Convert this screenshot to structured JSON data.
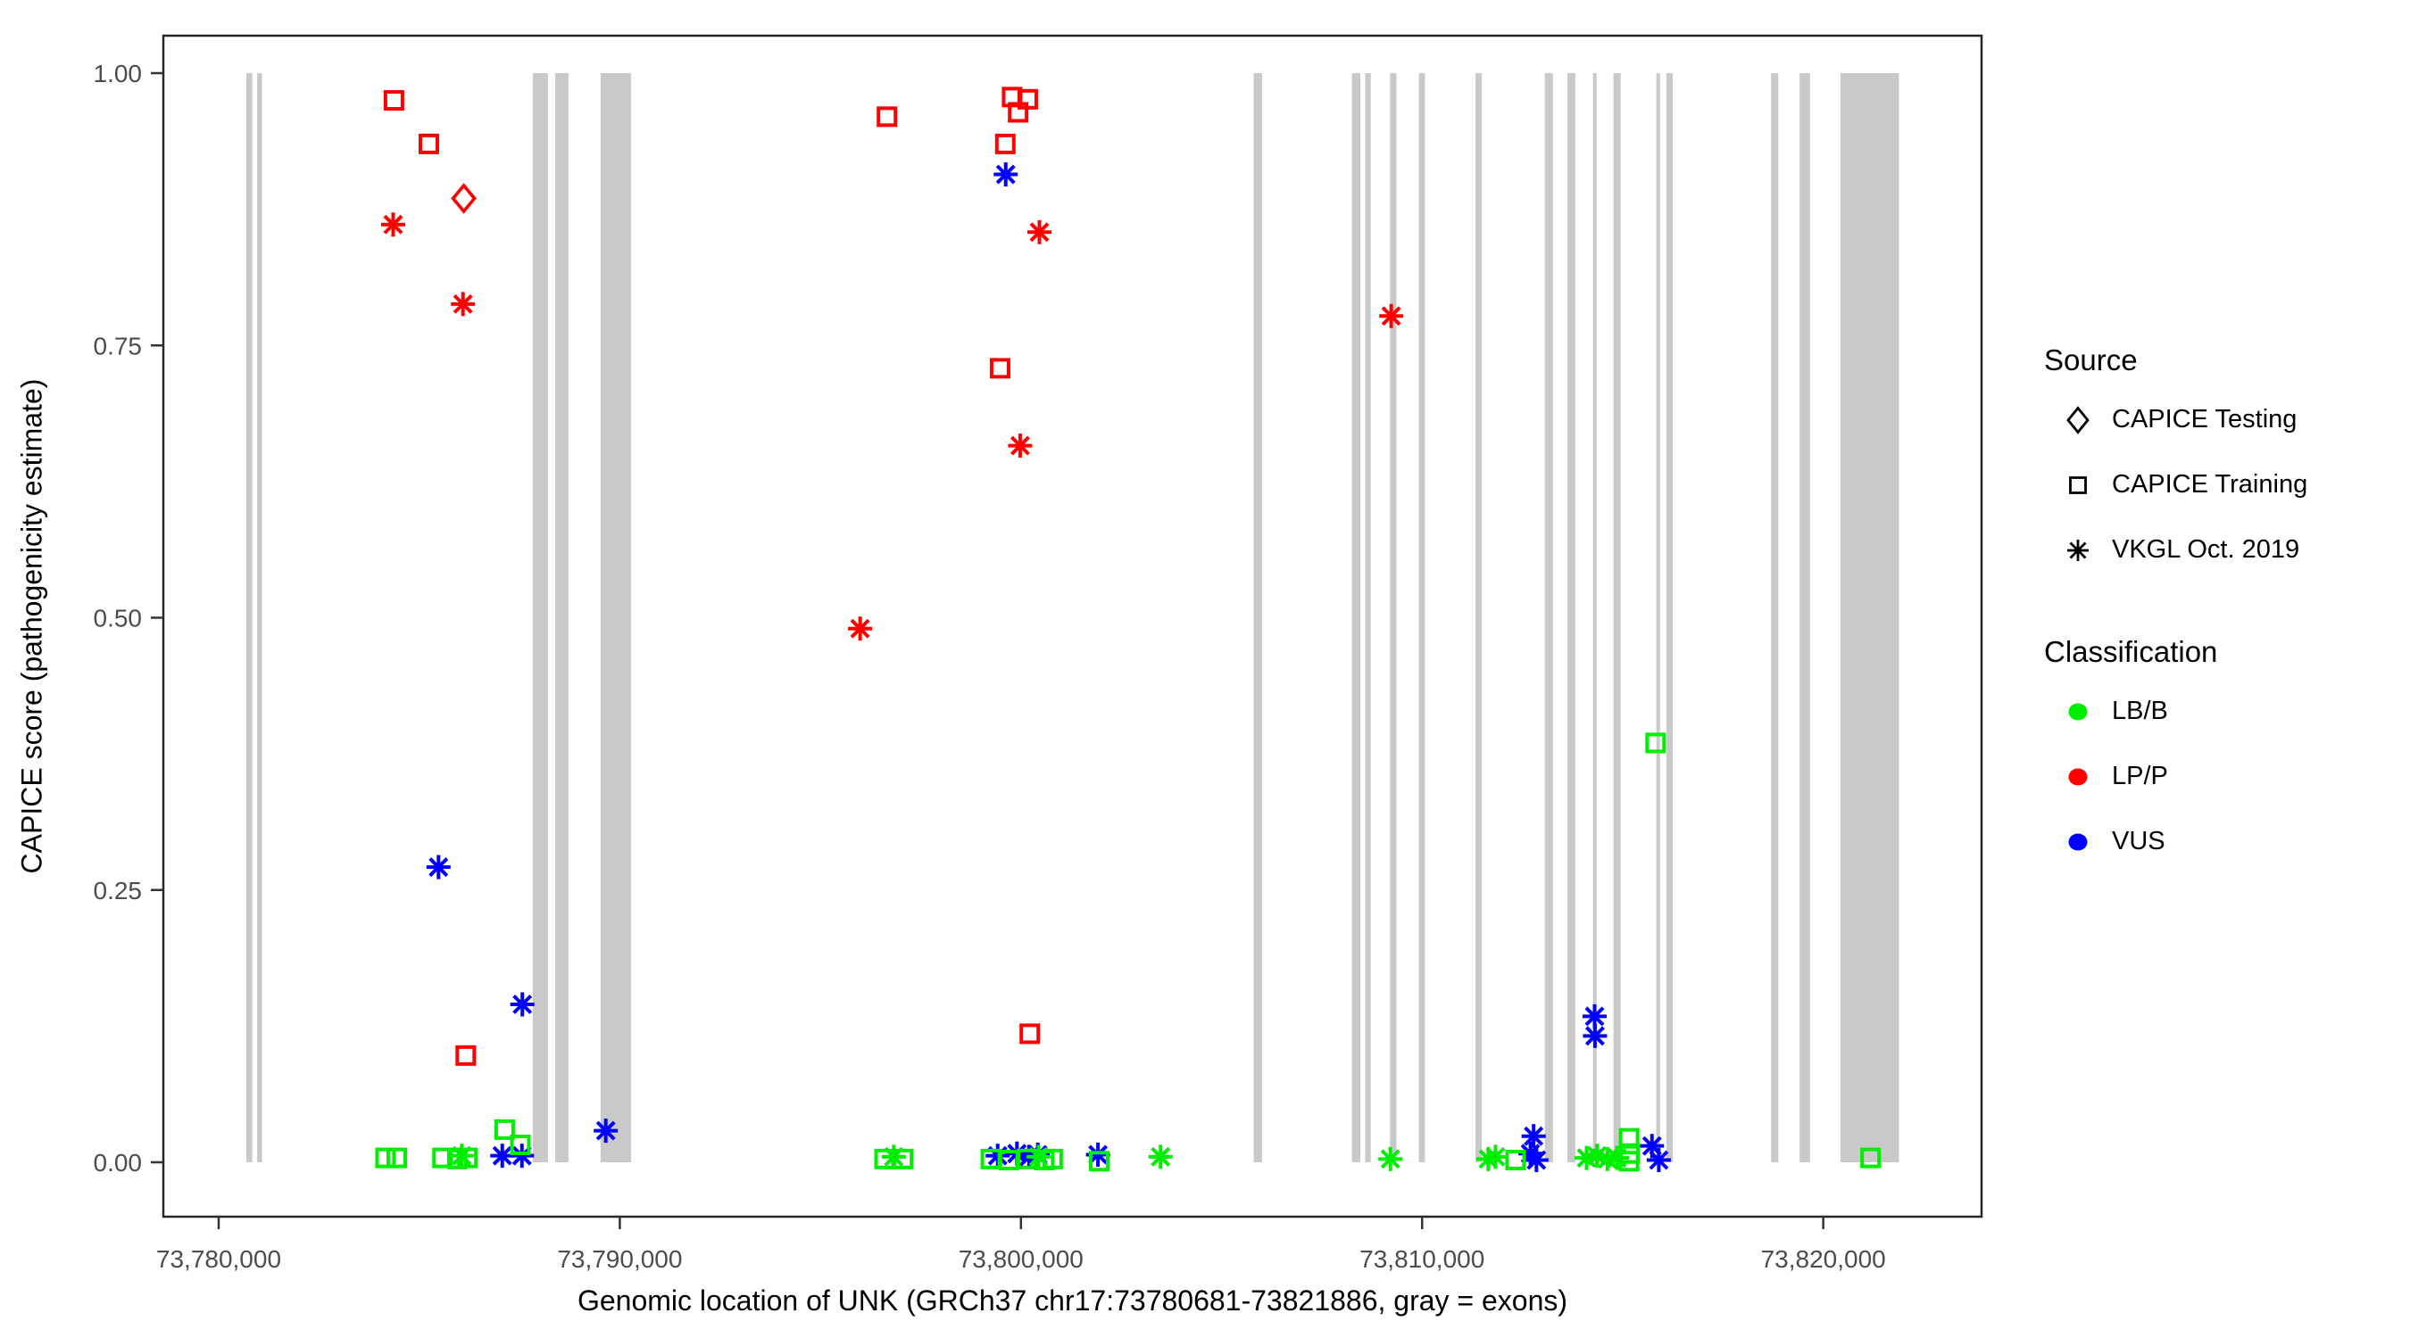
{
  "figure": {
    "x_axis_title": "Genomic location of UNK (GRCh37 chr17:73780681-73821886, gray = exons)",
    "y_axis_title": "CAPICE score (pathogenicity estimate)"
  },
  "legend": {
    "source": {
      "title": "Source",
      "items": [
        {
          "label": "CAPICE Testing",
          "marker": "diamond",
          "color": "#000000"
        },
        {
          "label": "CAPICE Training",
          "marker": "square",
          "color": "#000000"
        },
        {
          "label": "VKGL Oct. 2019",
          "marker": "asterisk",
          "color": "#000000"
        }
      ]
    },
    "classification": {
      "title": "Classification",
      "items": [
        {
          "label": "LB/B",
          "marker": "dot",
          "color": "#00EE00"
        },
        {
          "label": "LP/P",
          "marker": "dot",
          "color": "#FF0000"
        },
        {
          "label": "VUS",
          "marker": "dot",
          "color": "#0000FF"
        }
      ]
    }
  },
  "chart_data": {
    "type": "scatter",
    "title": "",
    "xlabel": "Genomic location of UNK (GRCh37 chr17:73780681-73821886, gray = exons)",
    "ylabel": "CAPICE score (pathogenicity estimate)",
    "x_domain": [
      73778621,
      73823946
    ],
    "y_domain": [
      -0.043,
      1.043
    ],
    "x_ticks": [
      {
        "value": 73780000,
        "label": "73,780,000"
      },
      {
        "value": 73790000,
        "label": "73,790,000"
      },
      {
        "value": 73800000,
        "label": "73,800,000"
      },
      {
        "value": 73810000,
        "label": "73,810,000"
      },
      {
        "value": 73820000,
        "label": "73,820,000"
      }
    ],
    "y_ticks": [
      {
        "value": 0.0,
        "label": "0.00"
      },
      {
        "value": 0.25,
        "label": "0.25"
      },
      {
        "value": 0.5,
        "label": "0.50"
      },
      {
        "value": 0.75,
        "label": "0.75"
      },
      {
        "value": 1.0,
        "label": "1.00"
      }
    ],
    "colors": {
      "LB/B": "#00EE00",
      "LP/P": "#FF0000",
      "VUS": "#0000FF",
      "exon": "#C9C9C9",
      "tick_label": "#4D4D4D",
      "panel_border": "#262626"
    },
    "exons": [
      [
        73780690,
        73780840
      ],
      [
        73780960,
        73781080
      ],
      [
        73787830,
        73788210
      ],
      [
        73788390,
        73788720
      ],
      [
        73789520,
        73790280
      ],
      [
        73805800,
        73806010
      ],
      [
        73808250,
        73808460
      ],
      [
        73808580,
        73808720
      ],
      [
        73809200,
        73809360
      ],
      [
        73809920,
        73810070
      ],
      [
        73811330,
        73811490
      ],
      [
        73813060,
        73813260
      ],
      [
        73813620,
        73813820
      ],
      [
        73814260,
        73814350
      ],
      [
        73814770,
        73814950
      ],
      [
        73815840,
        73815930
      ],
      [
        73816090,
        73816250
      ],
      [
        73818700,
        73818880
      ],
      [
        73819410,
        73819670
      ],
      [
        73820430,
        73821886
      ]
    ],
    "points": [
      {
        "pos": 73784370,
        "score": 0.975,
        "source": "CAPICE Training",
        "classification": "LP/P"
      },
      {
        "pos": 73785240,
        "score": 0.935,
        "source": "CAPICE Training",
        "classification": "LP/P"
      },
      {
        "pos": 73786110,
        "score": 0.885,
        "source": "CAPICE Testing",
        "classification": "LP/P"
      },
      {
        "pos": 73784350,
        "score": 0.861,
        "source": "VKGL Oct. 2019",
        "classification": "LP/P"
      },
      {
        "pos": 73786090,
        "score": 0.788,
        "source": "VKGL Oct. 2019",
        "classification": "LP/P"
      },
      {
        "pos": 73786160,
        "score": 0.098,
        "source": "CAPICE Training",
        "classification": "LP/P"
      },
      {
        "pos": 73796660,
        "score": 0.96,
        "source": "CAPICE Training",
        "classification": "LP/P"
      },
      {
        "pos": 73795990,
        "score": 0.49,
        "source": "VKGL Oct. 2019",
        "classification": "LP/P"
      },
      {
        "pos": 73799780,
        "score": 0.978,
        "source": "CAPICE Training",
        "classification": "LP/P"
      },
      {
        "pos": 73800170,
        "score": 0.976,
        "source": "CAPICE Training",
        "classification": "LP/P"
      },
      {
        "pos": 73799930,
        "score": 0.964,
        "source": "CAPICE Training",
        "classification": "LP/P"
      },
      {
        "pos": 73799610,
        "score": 0.935,
        "source": "CAPICE Training",
        "classification": "LP/P"
      },
      {
        "pos": 73800460,
        "score": 0.854,
        "source": "VKGL Oct. 2019",
        "classification": "LP/P"
      },
      {
        "pos": 73799480,
        "score": 0.729,
        "source": "CAPICE Training",
        "classification": "LP/P"
      },
      {
        "pos": 73799980,
        "score": 0.658,
        "source": "VKGL Oct. 2019",
        "classification": "LP/P"
      },
      {
        "pos": 73800220,
        "score": 0.118,
        "source": "CAPICE Training",
        "classification": "LP/P"
      },
      {
        "pos": 73809230,
        "score": 0.777,
        "source": "VKGL Oct. 2019",
        "classification": "LP/P"
      },
      {
        "pos": 73785480,
        "score": 0.271,
        "source": "VKGL Oct. 2019",
        "classification": "VUS"
      },
      {
        "pos": 73787570,
        "score": 0.145,
        "source": "VKGL Oct. 2019",
        "classification": "VUS"
      },
      {
        "pos": 73789650,
        "score": 0.029,
        "source": "VKGL Oct. 2019",
        "classification": "VUS"
      },
      {
        "pos": 73787070,
        "score": 0.006,
        "source": "VKGL Oct. 2019",
        "classification": "VUS"
      },
      {
        "pos": 73787560,
        "score": 0.006,
        "source": "VKGL Oct. 2019",
        "classification": "VUS"
      },
      {
        "pos": 73799620,
        "score": 0.907,
        "source": "VKGL Oct. 2019",
        "classification": "VUS"
      },
      {
        "pos": 73799420,
        "score": 0.006,
        "source": "VKGL Oct. 2019",
        "classification": "VUS"
      },
      {
        "pos": 73799900,
        "score": 0.008,
        "source": "VKGL Oct. 2019",
        "classification": "VUS"
      },
      {
        "pos": 73800200,
        "score": 0.005,
        "source": "VKGL Oct. 2019",
        "classification": "VUS"
      },
      {
        "pos": 73800420,
        "score": 0.007,
        "source": "VKGL Oct. 2019",
        "classification": "VUS"
      },
      {
        "pos": 73801920,
        "score": 0.007,
        "source": "VKGL Oct. 2019",
        "classification": "VUS"
      },
      {
        "pos": 73812700,
        "score": 0.008,
        "source": "VKGL Oct. 2019",
        "classification": "VUS"
      },
      {
        "pos": 73812780,
        "score": 0.024,
        "source": "VKGL Oct. 2019",
        "classification": "VUS"
      },
      {
        "pos": 73812850,
        "score": 0.002,
        "source": "VKGL Oct. 2019",
        "classification": "VUS"
      },
      {
        "pos": 73814300,
        "score": 0.134,
        "source": "VKGL Oct. 2019",
        "classification": "VUS"
      },
      {
        "pos": 73814310,
        "score": 0.116,
        "source": "VKGL Oct. 2019",
        "classification": "VUS"
      },
      {
        "pos": 73815730,
        "score": 0.015,
        "source": "VKGL Oct. 2019",
        "classification": "VUS"
      },
      {
        "pos": 73815900,
        "score": 0.002,
        "source": "VKGL Oct. 2019",
        "classification": "VUS"
      },
      {
        "pos": 73784160,
        "score": 0.004,
        "source": "CAPICE Training",
        "classification": "LB/B"
      },
      {
        "pos": 73784440,
        "score": 0.004,
        "source": "CAPICE Training",
        "classification": "LB/B"
      },
      {
        "pos": 73785580,
        "score": 0.004,
        "source": "CAPICE Training",
        "classification": "LB/B"
      },
      {
        "pos": 73785950,
        "score": 0.003,
        "source": "CAPICE Training",
        "classification": "LB/B"
      },
      {
        "pos": 73786060,
        "score": 0.006,
        "source": "VKGL Oct. 2019",
        "classification": "LB/B"
      },
      {
        "pos": 73786200,
        "score": 0.004,
        "source": "CAPICE Training",
        "classification": "LB/B"
      },
      {
        "pos": 73787130,
        "score": 0.03,
        "source": "CAPICE Training",
        "classification": "LB/B"
      },
      {
        "pos": 73787520,
        "score": 0.016,
        "source": "CAPICE Training",
        "classification": "LB/B"
      },
      {
        "pos": 73796600,
        "score": 0.003,
        "source": "CAPICE Training",
        "classification": "LB/B"
      },
      {
        "pos": 73796830,
        "score": 0.005,
        "source": "VKGL Oct. 2019",
        "classification": "LB/B"
      },
      {
        "pos": 73797060,
        "score": 0.003,
        "source": "CAPICE Training",
        "classification": "LB/B"
      },
      {
        "pos": 73799250,
        "score": 0.003,
        "source": "CAPICE Training",
        "classification": "LB/B"
      },
      {
        "pos": 73799700,
        "score": 0.002,
        "source": "CAPICE Training",
        "classification": "LB/B"
      },
      {
        "pos": 73800150,
        "score": 0.003,
        "source": "CAPICE Training",
        "classification": "LB/B"
      },
      {
        "pos": 73800440,
        "score": 0.005,
        "source": "VKGL Oct. 2019",
        "classification": "LB/B"
      },
      {
        "pos": 73800580,
        "score": 0.002,
        "source": "CAPICE Training",
        "classification": "LB/B"
      },
      {
        "pos": 73800790,
        "score": 0.003,
        "source": "CAPICE Training",
        "classification": "LB/B"
      },
      {
        "pos": 73801950,
        "score": 0.001,
        "source": "CAPICE Training",
        "classification": "LB/B"
      },
      {
        "pos": 73803480,
        "score": 0.005,
        "source": "VKGL Oct. 2019",
        "classification": "LB/B"
      },
      {
        "pos": 73809210,
        "score": 0.003,
        "source": "VKGL Oct. 2019",
        "classification": "LB/B"
      },
      {
        "pos": 73811650,
        "score": 0.003,
        "source": "VKGL Oct. 2019",
        "classification": "LB/B"
      },
      {
        "pos": 73811830,
        "score": 0.005,
        "source": "VKGL Oct. 2019",
        "classification": "LB/B"
      },
      {
        "pos": 73812330,
        "score": 0.002,
        "source": "CAPICE Training",
        "classification": "LB/B"
      },
      {
        "pos": 73814100,
        "score": 0.004,
        "source": "VKGL Oct. 2019",
        "classification": "LB/B"
      },
      {
        "pos": 73814360,
        "score": 0.006,
        "source": "VKGL Oct. 2019",
        "classification": "LB/B"
      },
      {
        "pos": 73814620,
        "score": 0.003,
        "source": "VKGL Oct. 2019",
        "classification": "LB/B"
      },
      {
        "pos": 73814860,
        "score": 0.004,
        "source": "VKGL Oct. 2019",
        "classification": "LB/B"
      },
      {
        "pos": 73815160,
        "score": 0.022,
        "source": "CAPICE Training",
        "classification": "LB/B"
      },
      {
        "pos": 73815170,
        "score": 0.008,
        "source": "CAPICE Training",
        "classification": "LB/B"
      },
      {
        "pos": 73815160,
        "score": 0.001,
        "source": "CAPICE Training",
        "classification": "LB/B"
      },
      {
        "pos": 73815820,
        "score": 0.385,
        "source": "CAPICE Training",
        "classification": "LB/B"
      },
      {
        "pos": 73821180,
        "score": 0.004,
        "source": "CAPICE Training",
        "classification": "LB/B"
      }
    ]
  }
}
